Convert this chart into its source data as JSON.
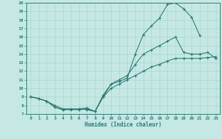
{
  "xlabel": "Humidex (Indice chaleur)",
  "xlim": [
    -0.5,
    23.5
  ],
  "ylim": [
    7,
    20
  ],
  "xticks": [
    0,
    1,
    2,
    3,
    4,
    5,
    6,
    7,
    8,
    9,
    10,
    11,
    12,
    13,
    14,
    15,
    16,
    17,
    18,
    19,
    20,
    21,
    22,
    23
  ],
  "yticks": [
    7,
    8,
    9,
    10,
    11,
    12,
    13,
    14,
    15,
    16,
    17,
    18,
    19,
    20
  ],
  "background_color": "#c5e8e4",
  "grid_color": "#aad4ce",
  "line_color": "#2a7a72",
  "line1_x": [
    0,
    1,
    2,
    3,
    4,
    5,
    6,
    7,
    8,
    9,
    10,
    11,
    12,
    13,
    14,
    15,
    16,
    17,
    18,
    19,
    20,
    21
  ],
  "line1_y": [
    9.0,
    8.8,
    8.5,
    8.0,
    7.6,
    7.6,
    7.6,
    7.5,
    7.3,
    9.0,
    10.5,
    10.8,
    11.2,
    14.0,
    16.3,
    17.3,
    18.2,
    19.8,
    20.0,
    19.3,
    18.3,
    16.2
  ],
  "line2_x": [
    0,
    1,
    2,
    3,
    4,
    5,
    6,
    7,
    8,
    9,
    10,
    11,
    12,
    13,
    14,
    15,
    16,
    17,
    18,
    19,
    20,
    21,
    22,
    23
  ],
  "line2_y": [
    9.0,
    8.8,
    8.5,
    7.8,
    7.5,
    7.6,
    7.6,
    7.7,
    7.3,
    9.2,
    10.5,
    11.0,
    11.5,
    12.8,
    14.0,
    14.5,
    15.0,
    15.5,
    16.0,
    14.2,
    14.0,
    14.0,
    14.2,
    13.5
  ],
  "line3_x": [
    0,
    1,
    2,
    3,
    4,
    5,
    6,
    7,
    8,
    9,
    10,
    11,
    12,
    13,
    14,
    15,
    16,
    17,
    18,
    19,
    20,
    21,
    22,
    23
  ],
  "line3_y": [
    9.0,
    8.8,
    8.5,
    7.8,
    7.5,
    7.5,
    7.5,
    7.6,
    7.3,
    9.0,
    10.0,
    10.5,
    11.0,
    11.5,
    12.0,
    12.5,
    12.8,
    13.2,
    13.5,
    13.5,
    13.5,
    13.5,
    13.6,
    13.7
  ]
}
